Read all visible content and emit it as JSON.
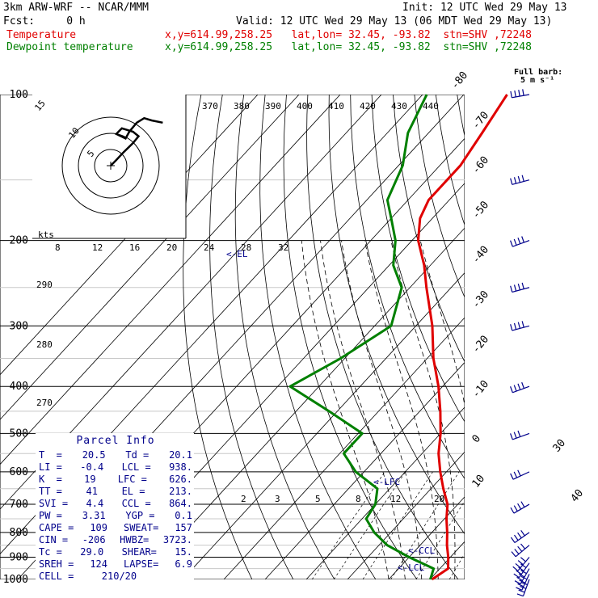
{
  "header": {
    "model": "3km ARW-WRF -- NCAR/MMM",
    "init": "Init: 12 UTC Wed 29 May 13",
    "fcst": "Fcst:     0 h",
    "valid": "Valid: 12 UTC Wed 29 May 13 (06 MDT Wed 29 May 13)",
    "temp_label": "Temperature",
    "temp_coords": "x,y=614.99,258.25   lat,lon= 32.45, -93.82  stn=SHV ,72248",
    "dew_label": "Dewpoint temperature",
    "dew_coords": "x,y=614.99,258.25   lat,lon= 32.45, -93.82  stn=SHV ,72248"
  },
  "barb_legend": {
    "line1": "Full barb:",
    "line2": "5 m s⁻¹"
  },
  "hodograph": {
    "unit": "kts",
    "ring_labels": [
      "5",
      "10",
      "15"
    ]
  },
  "el_label": "<-EL",
  "lfc_label": "<-LFC",
  "ccl_label": "<-CCL",
  "lcl_label": "<-LCL",
  "parcel_info": {
    "title": "Parcel Info",
    "rows": [
      [
        "T  =",
        "20.5",
        "Td =",
        "20.1"
      ],
      [
        "LI =",
        "-0.4",
        "LCL =",
        "938."
      ],
      [
        "K  =",
        "19",
        "LFC =",
        "626."
      ],
      [
        "TT =",
        "41",
        "EL =",
        "213."
      ],
      [
        "SVI =",
        "4.4",
        "CCL =",
        "864."
      ],
      [
        "PW =",
        "3.31",
        "YGP =",
        "0.1"
      ],
      [
        "CAPE =",
        "109",
        "SWEAT=",
        "157"
      ],
      [
        "CIN =",
        "-206",
        "HWBZ=",
        "3723."
      ],
      [
        "Tc =",
        "29.0",
        "SHEAR=",
        "15."
      ],
      [
        "SREH =",
        "124",
        "LAPSE=",
        "6.9"
      ],
      [
        "CELL =",
        "210/20",
        "",
        ""
      ]
    ]
  },
  "colors": {
    "temperature": "#e00000",
    "dewpoint": "#008000",
    "annot": "#00008b"
  },
  "chart_data": {
    "type": "line",
    "x_axis": "temperature (C), skewed",
    "y_axis": "pressure (hPa, log)",
    "ylim": [
      1000,
      100
    ],
    "pressure_ticks": [
      1000,
      900,
      800,
      700,
      600,
      500,
      400,
      300,
      200,
      100
    ],
    "isotherm_ticks": [
      -80,
      -70,
      -60,
      -50,
      -40,
      -30,
      -20,
      -10,
      0,
      10,
      20,
      30,
      40
    ],
    "dry_adiabat_ticks": [
      270,
      280,
      290
    ],
    "theta_ticks": [
      370,
      380,
      390,
      400,
      410,
      420,
      430,
      440
    ],
    "mixing_ratio_ticks": [
      2,
      3,
      5,
      8,
      12,
      20
    ],
    "upper_x_ticks": [
      8,
      12,
      16,
      20,
      24,
      28,
      32
    ],
    "series": [
      {
        "name": "Temperature",
        "pressure": [
          1000,
          950,
          900,
          850,
          800,
          750,
          700,
          650,
          600,
          550,
          500,
          450,
          400,
          350,
          300,
          250,
          225,
          200,
          180,
          165,
          140,
          120,
          100
        ],
        "temperature": [
          20.5,
          22,
          19.5,
          16.5,
          13.7,
          10.5,
          7.5,
          3,
          -1.5,
          -6,
          -10,
          -15,
          -21,
          -28.5,
          -36,
          -46,
          -51.5,
          -58.5,
          -63,
          -65,
          -65,
          -67,
          -69.5
        ]
      },
      {
        "name": "Dewpoint temperature",
        "pressure": [
          1000,
          950,
          900,
          850,
          800,
          750,
          700,
          650,
          600,
          550,
          500,
          450,
          400,
          350,
          300,
          250,
          225,
          200,
          180,
          165,
          140,
          120,
          100
        ],
        "temperature": [
          20.1,
          18.5,
          10,
          2,
          -4,
          -9,
          -10,
          -13,
          -22,
          -29,
          -29,
          -42,
          -57,
          -51,
          -46,
          -52,
          -59,
          -64,
          -70,
          -75,
          -79,
          -85,
          -89
        ]
      }
    ],
    "wind_profile": {
      "unit": "kts",
      "pressure": [
        1000,
        975,
        950,
        925,
        900,
        850,
        800,
        700,
        600,
        500,
        400,
        300,
        250,
        200,
        150,
        100
      ],
      "speed": [
        20,
        20,
        25,
        25,
        25,
        25,
        20,
        20,
        15,
        15,
        20,
        35,
        40,
        35,
        30,
        20
      ],
      "direction": [
        200,
        205,
        210,
        215,
        220,
        230,
        235,
        240,
        245,
        250,
        250,
        255,
        255,
        250,
        255,
        260
      ]
    },
    "hodograph_trace": {
      "u": [
        0,
        3,
        7,
        12,
        15,
        12,
        6,
        3,
        8,
        10,
        14,
        18,
        22,
        28
      ],
      "v": [
        0,
        5,
        12,
        20,
        26,
        30,
        33,
        28,
        24,
        30,
        38,
        42,
        40,
        38
      ]
    }
  }
}
